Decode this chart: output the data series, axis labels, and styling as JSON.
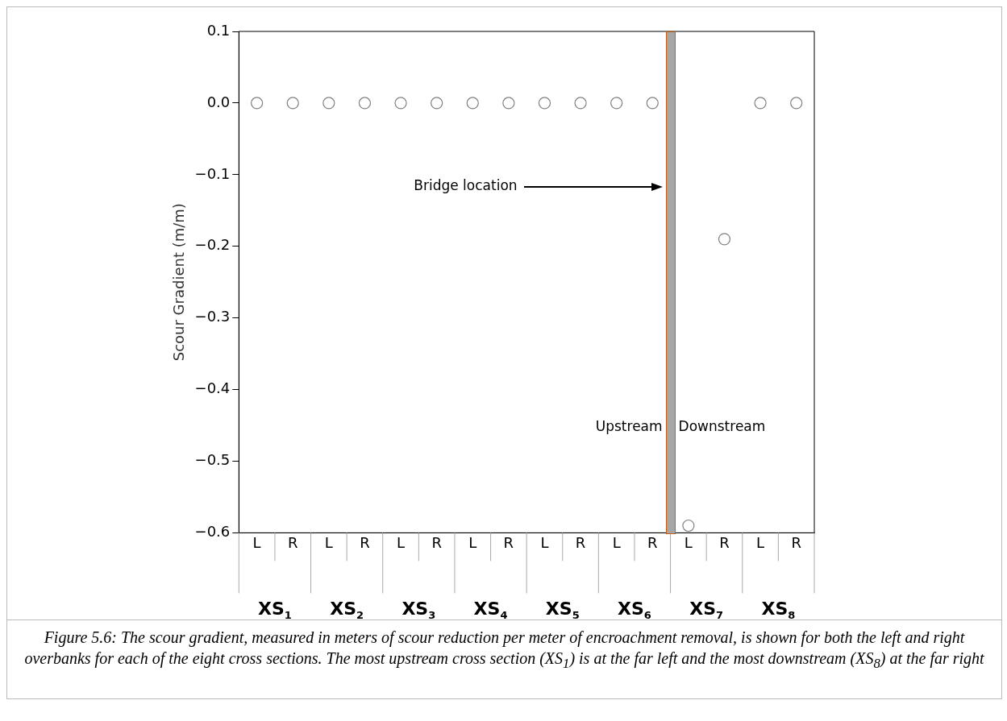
{
  "chart_data": {
    "type": "scatter",
    "ylabel": "Scour Gradient (m/m)",
    "categories": [
      "L",
      "R",
      "L",
      "R",
      "L",
      "R",
      "L",
      "R",
      "L",
      "R",
      "L",
      "R",
      "L",
      "R",
      "L",
      "R"
    ],
    "values": [
      0,
      0,
      0,
      0,
      0,
      0,
      0,
      0,
      0,
      0,
      0,
      0,
      -0.59,
      -0.19,
      0,
      0
    ],
    "color": "#808080",
    "marker": "circle",
    "grid": false,
    "ylim": [
      -0.6,
      0.1
    ],
    "yticks": [
      -0.6,
      -0.5,
      -0.4,
      -0.3,
      -0.2,
      -0.1,
      {
        "value": 0,
        "label": "0.0"
      },
      0.1
    ],
    "annotations": [
      "Bridge location",
      "Upstream",
      "Downstream",
      "XS$_{1}$",
      "XS$_{2}$",
      "XS$_{3}$",
      "XS$_{4}$",
      "XS$_{5}$",
      "XS$_{6}$",
      "XS$_{7}$",
      "XS$_{8}$",
      "Figure 5.6: The scour gradient, measured in meters of scour reduction per meter of encroachment removal, is shown for both the left and right overbanks for each of the eight cross sections. The most upstream cross section (XS$_{1}$) is at the far left and the most downstream (XS$_{8}$) at the far right"
    ]
  }
}
